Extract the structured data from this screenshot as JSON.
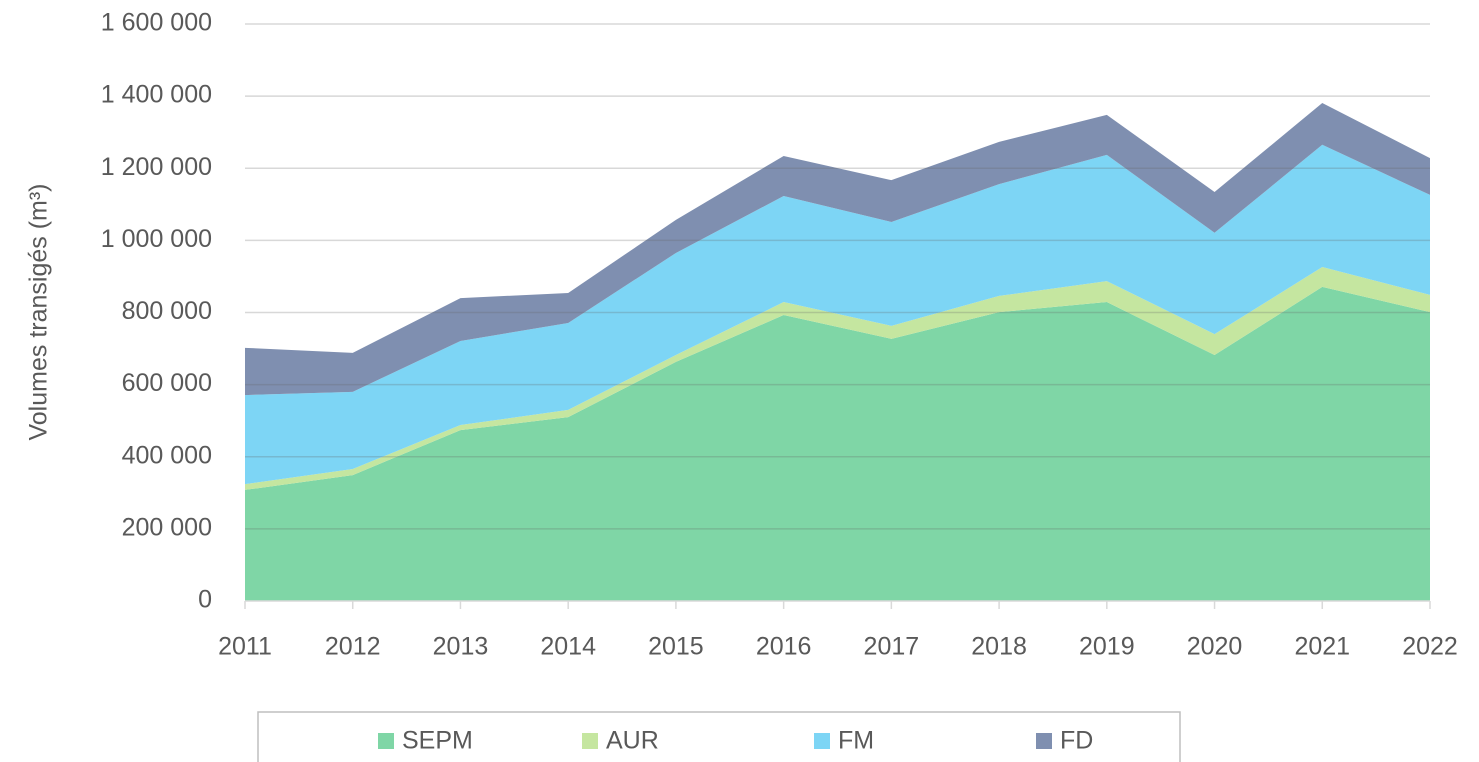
{
  "chart_data": {
    "type": "stacked_area",
    "y_axis_label": "Volumes transigés (m³)",
    "categories": [
      "2011",
      "2012",
      "2013",
      "2014",
      "2015",
      "2016",
      "2017",
      "2018",
      "2019",
      "2020",
      "2021",
      "2022"
    ],
    "series": [
      {
        "name": "SEPM",
        "color": "#7fd6a6",
        "values": [
          308000,
          349000,
          474000,
          510000,
          663000,
          793000,
          727000,
          801000,
          829000,
          682000,
          871000,
          801000
        ]
      },
      {
        "name": "AUR",
        "color": "#c5e6a0",
        "values": [
          16000,
          17000,
          14000,
          20000,
          19000,
          36000,
          36000,
          45000,
          58000,
          58000,
          55000,
          48000
        ]
      },
      {
        "name": "FM",
        "color": "#7dd5f5",
        "values": [
          247000,
          214000,
          233000,
          241000,
          283000,
          294000,
          288000,
          310000,
          350000,
          281000,
          339000,
          277000
        ]
      },
      {
        "name": "FD",
        "color": "#7f8fb0",
        "values": [
          131000,
          108000,
          119000,
          83000,
          92000,
          111000,
          116000,
          117000,
          111000,
          113000,
          116000,
          102000
        ]
      }
    ],
    "ylim": [
      0,
      1600000
    ],
    "yticks": [
      0,
      {
        "value": 200000,
        "label": "200 000"
      },
      {
        "value": 400000,
        "label": "400 000"
      },
      {
        "value": 600000,
        "label": "600 000"
      },
      {
        "value": 800000,
        "label": "800 000"
      },
      {
        "value": 1000000,
        "label": "1 000 000"
      },
      {
        "value": 1200000,
        "label": "1 200 000"
      },
      {
        "value": 1400000,
        "label": "1 400 000"
      },
      {
        "value": 1600000,
        "label": "1 600 000"
      }
    ],
    "grid": true,
    "legend": "bottom"
  }
}
